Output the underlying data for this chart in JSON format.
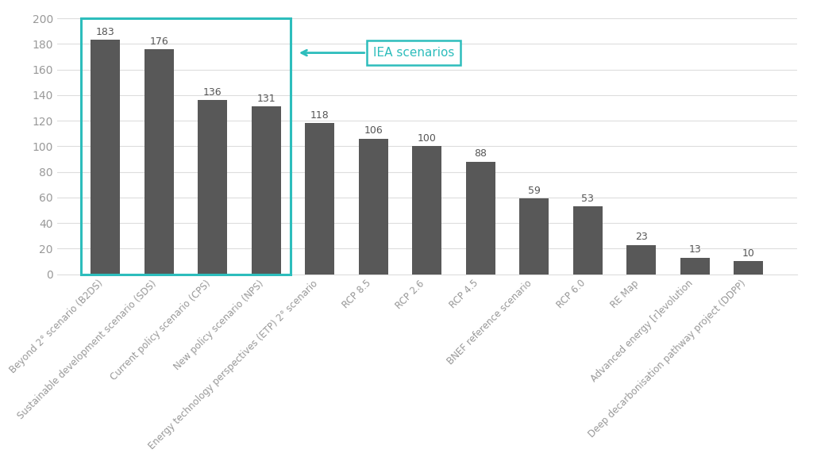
{
  "categories": [
    "Beyond 2° scenario (B2DS)",
    "Sustainable development scenario (SDS)",
    "Current policy scenario (CPS)",
    "New policy scenario (NPS)",
    "Energy technology perspectives (ETP) 2° scenario",
    "RCP 8.5",
    "RCP 2.6",
    "RCP 4.5",
    "BNEF reference scenario",
    "RCP 6.0",
    "RE Map",
    "Advanced energy [r]evolution",
    "Deep decarbonisation pathway project (DDPP)"
  ],
  "values": [
    183,
    176,
    136,
    131,
    118,
    106,
    100,
    88,
    59,
    53,
    23,
    13,
    10
  ],
  "bar_color": "#585858",
  "iea_box_color": "#2dbdbc",
  "iea_indices": [
    0,
    1,
    2,
    3
  ],
  "iea_label": "IEA scenarios",
  "ylim": [
    0,
    200
  ],
  "yticks": [
    0,
    20,
    40,
    60,
    80,
    100,
    120,
    140,
    160,
    180,
    200
  ],
  "background_color": "#ffffff",
  "grid_color": "#dddddd",
  "label_fontsize": 8.5,
  "value_fontsize": 9,
  "tick_label_color": "#999999",
  "bar_label_color": "#555555",
  "bar_width": 0.55
}
